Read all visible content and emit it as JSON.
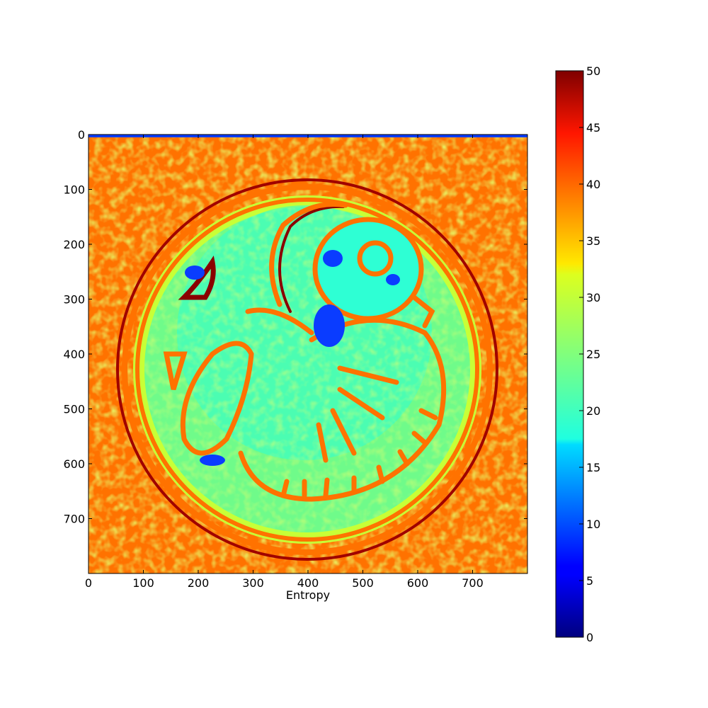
{
  "chart_data": {
    "type": "heatmap",
    "title": "",
    "xlabel": "Entropy",
    "ylabel": "",
    "xlim": [
      0,
      800
    ],
    "ylim": [
      800,
      0
    ],
    "x_ticks": [
      0,
      100,
      200,
      300,
      400,
      500,
      600,
      700
    ],
    "y_ticks": [
      0,
      100,
      200,
      300,
      400,
      500,
      600,
      700
    ],
    "x_tick_labels": [
      "0",
      "100",
      "200",
      "300",
      "400",
      "500",
      "600",
      "700"
    ],
    "y_tick_labels": [
      "0",
      "100",
      "200",
      "300",
      "400",
      "500",
      "600",
      "700"
    ],
    "colormap": "jet",
    "colorbar": {
      "range": [
        0,
        50
      ],
      "ticks": [
        0,
        5,
        10,
        15,
        20,
        25,
        30,
        35,
        40,
        45,
        50
      ],
      "tick_labels": [
        "0",
        "5",
        "10",
        "15",
        "20",
        "25",
        "30",
        "35",
        "40",
        "45",
        "50"
      ]
    },
    "grid": false,
    "image_description_values": {
      "background_entropy_typical": 38,
      "central_disc_entropy_typical": 24,
      "ring_edge_entropy_typical": 44,
      "low_spot_entropy_typical": 10
    }
  }
}
